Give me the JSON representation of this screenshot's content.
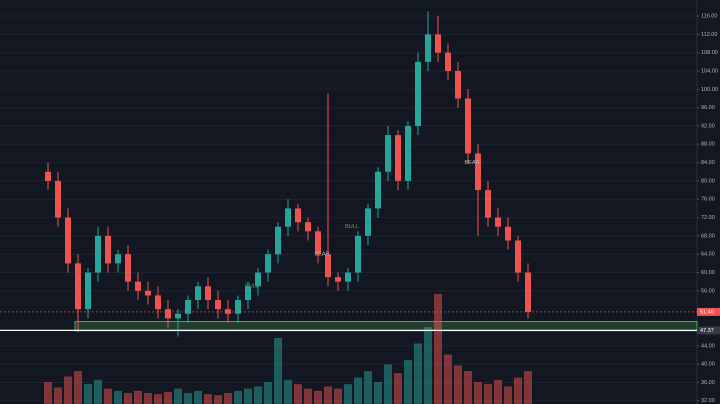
{
  "chart_data": {
    "type": "candlestick",
    "open": [
      82,
      80,
      72,
      62,
      52,
      60,
      68,
      62,
      64,
      58,
      56,
      55,
      52,
      50,
      51,
      54,
      57,
      54,
      52,
      51,
      54,
      57,
      60,
      64,
      70,
      74,
      71,
      69,
      64,
      59,
      58,
      60,
      68,
      74,
      82,
      90,
      80,
      92,
      106,
      112,
      108,
      104,
      98,
      86,
      78,
      72,
      70,
      67,
      60
    ],
    "high": [
      84,
      82,
      74,
      64,
      61,
      70,
      70,
      65,
      66,
      60,
      58,
      57,
      54,
      52,
      55,
      58,
      59,
      56,
      54,
      55,
      58,
      61,
      65,
      71,
      76,
      75,
      72,
      70,
      99,
      60,
      61,
      69,
      75,
      83,
      92,
      91,
      93,
      108,
      117,
      116,
      110,
      106,
      100,
      88,
      80,
      74,
      72,
      68,
      62
    ],
    "low": [
      78,
      70,
      60,
      47,
      50,
      58,
      60,
      60,
      56,
      54,
      53,
      50,
      48,
      46,
      49,
      52,
      52,
      50,
      49,
      49,
      52,
      55,
      58,
      62,
      68,
      69,
      67,
      62,
      57,
      56,
      56,
      58,
      66,
      72,
      80,
      78,
      78,
      90,
      104,
      106,
      102,
      96,
      84,
      68,
      70,
      68,
      65,
      58,
      50
    ],
    "close": [
      80,
      72,
      62,
      52,
      60,
      68,
      62,
      64,
      58,
      56,
      55,
      52,
      50,
      51,
      54,
      57,
      54,
      52,
      51,
      54,
      57,
      60,
      64,
      70,
      74,
      71,
      69,
      64,
      59,
      58,
      60,
      68,
      74,
      82,
      90,
      80,
      92,
      106,
      112,
      108,
      104,
      98,
      86,
      78,
      72,
      70,
      67,
      60,
      51.4
    ],
    "volume": [
      20,
      15,
      25,
      30,
      18,
      22,
      14,
      12,
      10,
      12,
      10,
      9,
      11,
      14,
      10,
      12,
      9,
      8,
      10,
      12,
      14,
      16,
      20,
      60,
      22,
      18,
      14,
      12,
      16,
      14,
      18,
      24,
      30,
      20,
      36,
      28,
      40,
      55,
      70,
      100,
      45,
      35,
      30,
      20,
      18,
      22,
      16,
      24,
      30
    ],
    "up_color": "#26a69a",
    "down_color": "#ef5350",
    "ylim": [
      31.3,
      119.5
    ],
    "yticks": [
      {
        "value": 116,
        "label": "116.00"
      },
      {
        "value": 112,
        "label": "112.00"
      },
      {
        "value": 108,
        "label": "108.00"
      },
      {
        "value": 104,
        "label": "104.00"
      },
      {
        "value": 100,
        "label": "100.00"
      },
      {
        "value": 96,
        "label": "96.00"
      },
      {
        "value": 92,
        "label": "92.00"
      },
      {
        "value": 88,
        "label": "88.00"
      },
      {
        "value": 84,
        "label": "84.00"
      },
      {
        "value": 80,
        "label": "80.00"
      },
      {
        "value": 76,
        "label": "76.00"
      },
      {
        "value": 72,
        "label": "72.00"
      },
      {
        "value": 68,
        "label": "68.00"
      },
      {
        "value": 64,
        "label": "64.00"
      },
      {
        "value": 60,
        "label": "60.00"
      },
      {
        "value": 56,
        "label": "56.00"
      },
      {
        "value": 44,
        "label": "44.00"
      },
      {
        "value": 40,
        "label": "40.00"
      },
      {
        "value": 36,
        "label": "36.00"
      },
      {
        "value": 32,
        "label": "32.00"
      }
    ],
    "grid": true,
    "price_lines": [
      {
        "value": 51.4,
        "label": "51.40",
        "color": "#ef5350"
      },
      {
        "value": 47.37,
        "label": "47.37",
        "color": "#ffffff"
      }
    ],
    "zone": {
      "from": 47.3,
      "to": 49.3,
      "color": "#4caf50"
    },
    "annotations": [
      "BULL",
      "BEAR",
      "BULL",
      "BEAR"
    ]
  }
}
